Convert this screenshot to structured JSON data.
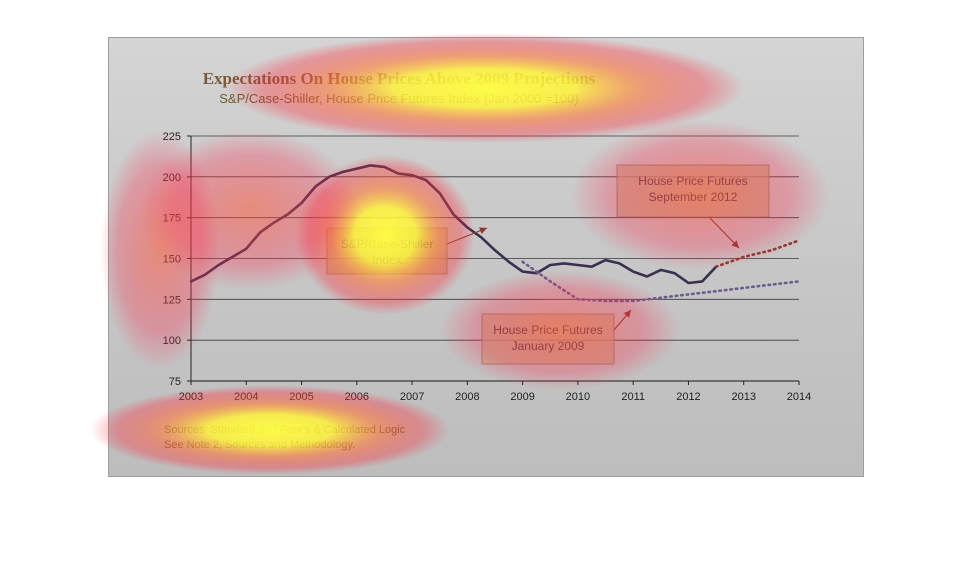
{
  "chart_data": {
    "type": "line",
    "title": "Expectations On House Prices Above 2009 Projections",
    "subtitle": "S&P/Case-Shiller, House Price Futures Index (Jan 2000 =100)",
    "xlim": [
      2003,
      2014
    ],
    "ylim": [
      75,
      225
    ],
    "x_ticks": [
      2003,
      2004,
      2005,
      2006,
      2007,
      2008,
      2009,
      2010,
      2011,
      2012,
      2013,
      2014
    ],
    "y_ticks": [
      75,
      100,
      125,
      150,
      175,
      200,
      225
    ],
    "grid": "horizontal",
    "series": [
      {
        "name": "S&P/Case-Shiller Index",
        "style": "solid",
        "color": "#3a2f4f",
        "x": [
          2003.0,
          2003.25,
          2003.5,
          2003.75,
          2004.0,
          2004.25,
          2004.5,
          2004.75,
          2005.0,
          2005.25,
          2005.5,
          2005.75,
          2006.0,
          2006.25,
          2006.5,
          2006.75,
          2007.0,
          2007.25,
          2007.5,
          2007.75,
          2008.0,
          2008.25,
          2008.5,
          2008.75,
          2009.0,
          2009.25,
          2009.5,
          2009.75,
          2010.0,
          2010.25,
          2010.5,
          2010.75,
          2011.0,
          2011.25,
          2011.5,
          2011.75,
          2012.0,
          2012.25,
          2012.5
        ],
        "y": [
          136,
          140,
          146,
          151,
          156,
          166,
          172,
          177,
          184,
          194,
          200,
          203,
          205,
          207,
          206,
          202,
          201,
          198,
          190,
          177,
          169,
          163,
          155,
          148,
          142,
          141,
          146,
          147,
          146,
          145,
          149,
          147,
          142,
          139,
          143,
          141,
          135,
          136,
          145
        ]
      },
      {
        "name": "House Price Futures January 2009",
        "style": "dotted",
        "color": "#6b5b8f",
        "x": [
          2009.0,
          2009.5,
          2010.0,
          2010.5,
          2011.0,
          2011.5,
          2012.0,
          2012.5,
          2013.0,
          2013.5,
          2014.0
        ],
        "y": [
          148,
          136,
          125,
          124,
          124,
          126,
          128,
          130,
          132,
          134,
          136
        ]
      },
      {
        "name": "House Price Futures September 2012",
        "style": "dotted",
        "color": "#8a3a30",
        "x": [
          2012.5,
          2012.75,
          2013.0,
          2013.25,
          2013.5,
          2013.75,
          2014.0
        ],
        "y": [
          145,
          148,
          151,
          153,
          155,
          158,
          161
        ]
      }
    ],
    "annotations": [
      {
        "lines": [
          "S&P/Case-Shiller",
          "Index"
        ]
      },
      {
        "lines": [
          "House Price Futures",
          "January 2009"
        ]
      },
      {
        "lines": [
          "House Price Futures",
          "September 2012"
        ]
      }
    ],
    "source_lines": [
      "Sources: Standard and Poor's & Calculated Logic",
      "See Note 2, Sources and Methodology."
    ]
  },
  "colors": {
    "grid": "#3a3a3a",
    "axis": "#222222",
    "annotation_box": "#c2a888",
    "arrow": "#8a3a30"
  }
}
